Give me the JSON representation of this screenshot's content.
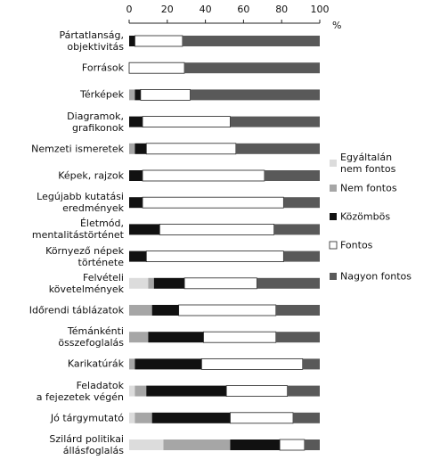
{
  "chart_data": {
    "type": "stacked-bar",
    "orientation": "horizontal",
    "unit": "%",
    "categories": [
      "Pártatlanság,\nobjektivitás",
      "Források",
      "Térképek",
      "Diagramok,\ngrafikonok",
      "Nemzeti ismeretek",
      "Képek, rajzok",
      "Legújabb kutatási\neredmények",
      "Életmód,\nmentalitástörténet",
      "Környező népek\ntörténete",
      "Felvételi\nkövetelmények",
      "Időrendi táblázatok",
      "Témánkénti\nösszefoglalás",
      "Karikatúrák",
      "Feladatok\na fejezetek végén",
      "Jó tárgymutató",
      "Szilárd politikai\nállásfoglalás"
    ],
    "series": [
      {
        "name": "Egyáltalán\nnem fontos",
        "color": "#dcdcdc",
        "values": [
          0,
          0,
          0,
          0,
          0,
          0,
          0,
          0,
          0,
          10,
          0,
          0,
          0,
          3,
          3,
          18
        ]
      },
      {
        "name": "Nem fontos",
        "color": "#a6a6a6",
        "values": [
          0,
          0,
          3,
          0,
          3,
          0,
          0,
          0,
          0,
          3,
          12,
          10,
          3,
          6,
          9,
          35
        ]
      },
      {
        "name": "Közömbös",
        "color": "#111111",
        "values": [
          3,
          0,
          3,
          7,
          6,
          7,
          7,
          16,
          9,
          16,
          14,
          29,
          35,
          42,
          41,
          26
        ]
      },
      {
        "name": "Fontos",
        "color": "#ffffff",
        "values": [
          25,
          29,
          26,
          46,
          47,
          64,
          74,
          60,
          72,
          38,
          51,
          38,
          53,
          32,
          33,
          13
        ]
      },
      {
        "name": "Nagyon fontos",
        "color": "#595959",
        "values": [
          72,
          71,
          68,
          47,
          44,
          29,
          19,
          24,
          19,
          33,
          23,
          23,
          9,
          17,
          14,
          8
        ]
      }
    ],
    "xlim": [
      0,
      100
    ],
    "xticks": [
      0,
      20,
      40,
      60,
      80,
      100
    ],
    "legend": "right"
  }
}
